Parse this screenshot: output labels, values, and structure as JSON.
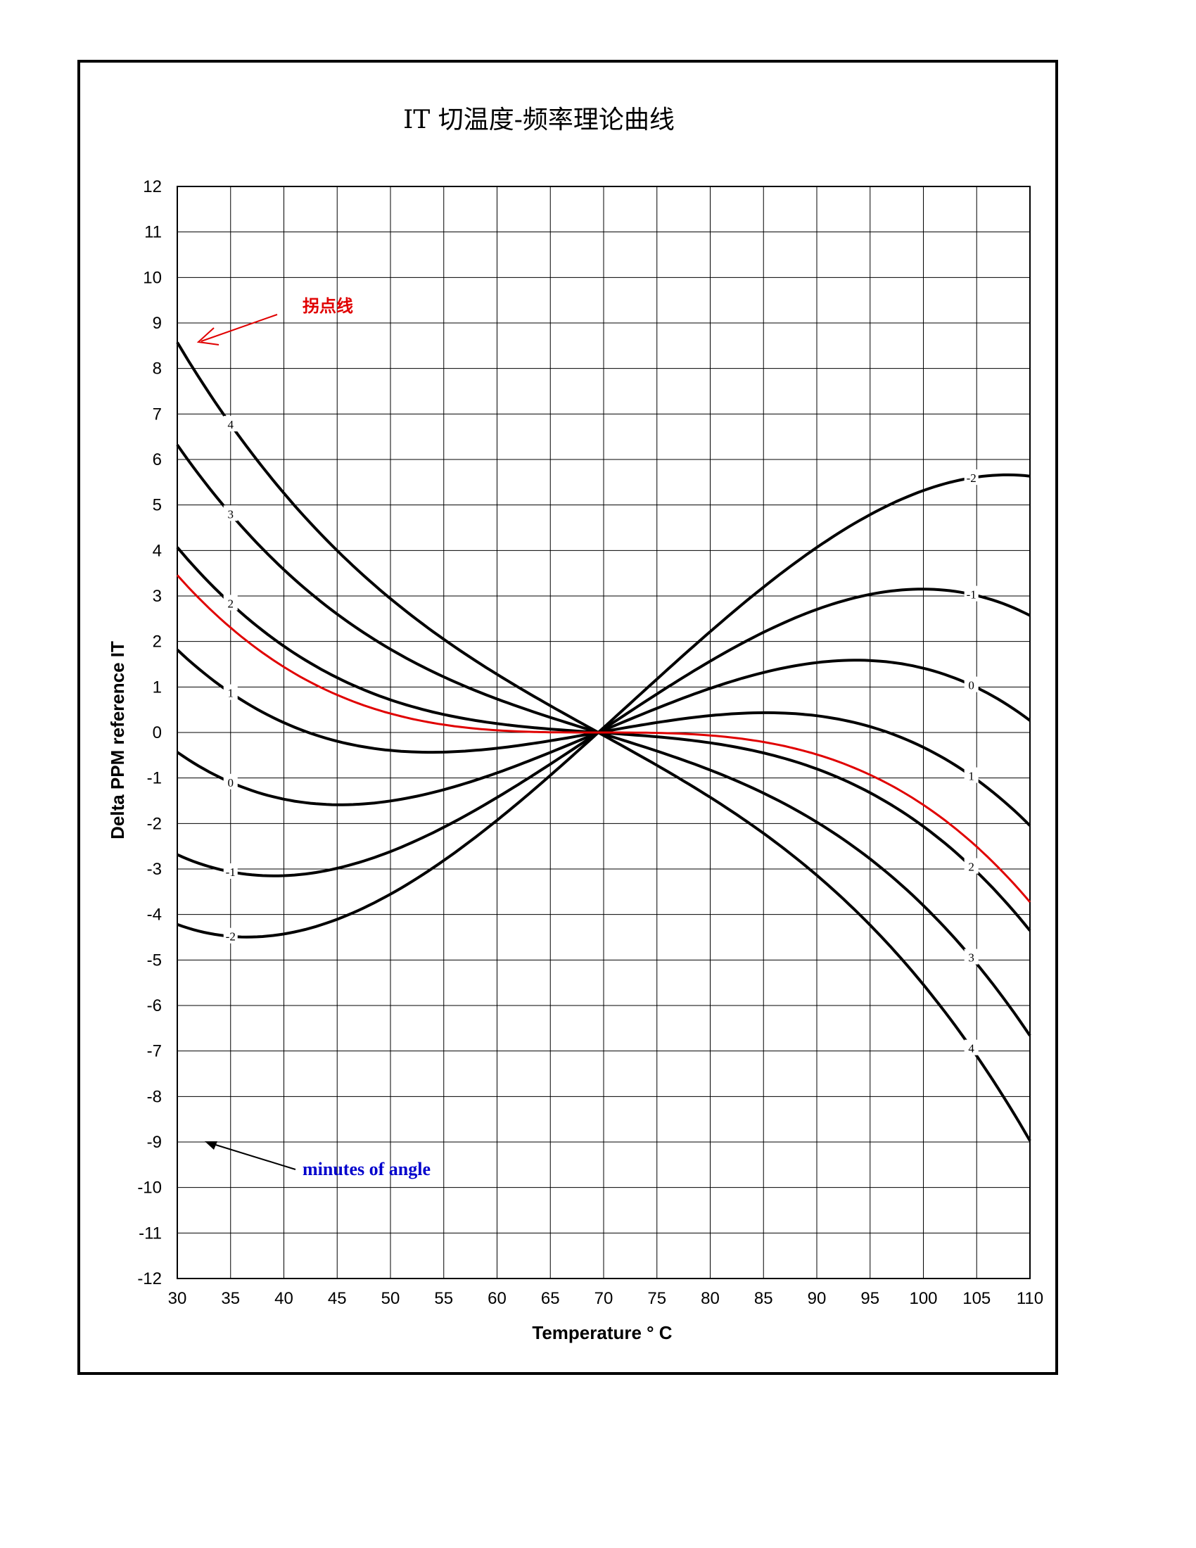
{
  "chart_data": {
    "type": "line",
    "title": "IT 切温度-频率理论曲线",
    "xlabel": "Temperature ° C",
    "ylabel": "Delta PPM reference IT",
    "xlim": [
      30,
      110
    ],
    "ylim": [
      -12,
      12
    ],
    "x_ticks": [
      "30",
      "35",
      "40",
      "45",
      "50",
      "55",
      "60",
      "65",
      "70",
      "75",
      "80",
      "85",
      "90",
      "95",
      "100",
      "105",
      "110"
    ],
    "y_ticks": [
      "12",
      "11",
      "10",
      "9",
      "8",
      "7",
      "6",
      "5",
      "4",
      "3",
      "2",
      "1",
      "0",
      "-1",
      "-2",
      "-3",
      "-4",
      "-5",
      "-6",
      "-7",
      "-8",
      "-9",
      "-10",
      "-11",
      "-12"
    ],
    "grid": true,
    "x_ref": 69.5,
    "cubic_coeff": -5.61e-05,
    "series": [
      {
        "name": "-2",
        "color": "#000000",
        "linear": 0.2125,
        "quad": 0.00046,
        "label_x": 104.5
      },
      {
        "name": "-1",
        "color": "#000000",
        "linear": 0.1555,
        "quad": 0.0,
        "label_x": 104.5
      },
      {
        "name": "0",
        "color": "#000000",
        "linear": 0.0985,
        "quad": 0.0,
        "label_x": 104.5
      },
      {
        "name": "1",
        "color": "#000000",
        "linear": 0.0415,
        "quad": 0.0,
        "label_x": 104.5
      },
      {
        "name": "2",
        "color": "#000000",
        "linear": -0.0155,
        "quad": 0.0,
        "label_x": 104.5
      },
      {
        "name": "3",
        "color": "#000000",
        "linear": -0.0725,
        "quad": 0.0,
        "label_x": 104.5
      },
      {
        "name": "4",
        "color": "#000000",
        "linear": -0.1295,
        "quad": 0.0,
        "label_x": 104.5
      },
      {
        "name": "",
        "color": "#e00000",
        "linear": 0.0,
        "quad": 0.0,
        "label_x": null
      }
    ],
    "annotations": [
      {
        "text": "拐点线",
        "color": "#e00000"
      },
      {
        "text": "minutes of angle",
        "color": "#0000cc"
      }
    ]
  }
}
